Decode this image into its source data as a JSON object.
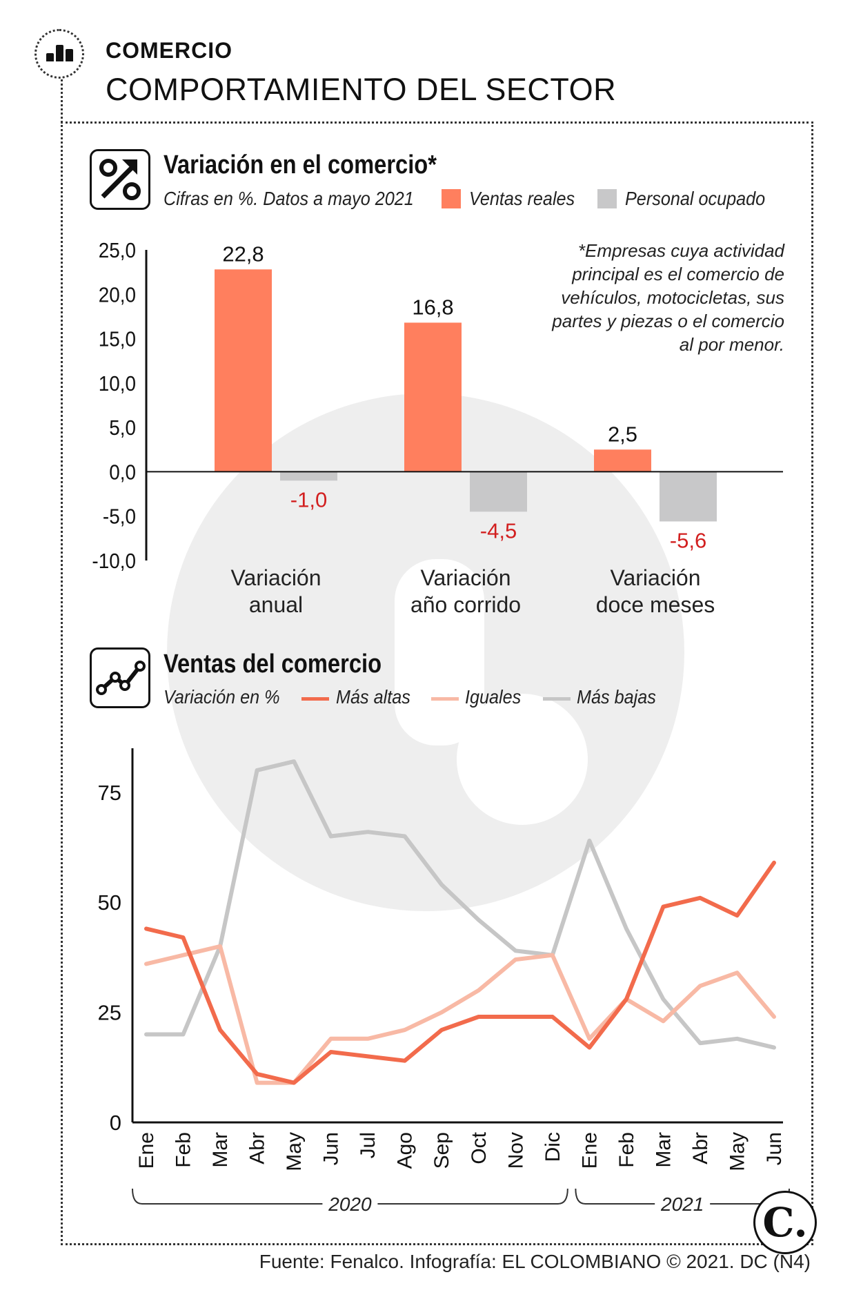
{
  "header": {
    "section": "COMERCIO",
    "title": "COMPORTAMIENTO DEL SECTOR"
  },
  "bar_chart": {
    "title": "Variación en el comercio*",
    "subtitle": "Cifras en %. Datos a mayo 2021",
    "icon": "percent-arrow-icon",
    "note": "*Empresas cuya actividad principal es el comercio de vehículos, motocicletas, sus partes y piezas o el comercio al por menor."
  },
  "line_chart": {
    "title": "Ventas del comercio",
    "subtitle": "Variación en %",
    "icon": "line-chart-icon",
    "year_labels": [
      "2020",
      "2021"
    ]
  },
  "colors": {
    "ventas_reales": "#ff7f5e",
    "personal_ocupado": "#c8c8c9",
    "mas_altas": "#f26b4c",
    "iguales": "#f8b9a5",
    "mas_bajas": "#c6c6c6",
    "negative_label": "#d21f1f"
  },
  "chart_data": [
    {
      "type": "bar",
      "title": "Variación en el comercio*",
      "subtitle": "Cifras en %. Datos a mayo 2021",
      "categories": [
        "Variación anual",
        "Variación año corrido",
        "Variación doce meses"
      ],
      "category_lines": [
        [
          "Variación",
          "anual"
        ],
        [
          "Variación",
          "año corrido"
        ],
        [
          "Variación",
          "doce meses"
        ]
      ],
      "series": [
        {
          "name": "Ventas reales",
          "values": [
            22.8,
            16.8,
            2.5
          ],
          "labels": [
            "22,8",
            "16,8",
            "2,5"
          ]
        },
        {
          "name": "Personal ocupado",
          "values": [
            -1.0,
            -4.5,
            -5.6
          ],
          "labels": [
            "-1,0",
            "-4,5",
            "-5,6"
          ]
        }
      ],
      "ylim": [
        -10,
        25
      ],
      "yticks": [
        "25,0",
        "20,0",
        "15,0",
        "10,0",
        "5,0",
        "0,0",
        "-5,0",
        "-10,0"
      ],
      "ytick_values": [
        25,
        20,
        15,
        10,
        5,
        0,
        -5,
        -10
      ],
      "legend_position": "top"
    },
    {
      "type": "line",
      "title": "Ventas del comercio",
      "subtitle": "Variación en %",
      "x": [
        "Ene",
        "Feb",
        "Mar",
        "Abr",
        "May",
        "Jun",
        "Jul",
        "Ago",
        "Sep",
        "Oct",
        "Nov",
        "Dic",
        "Ene",
        "Feb",
        "Mar",
        "Abr",
        "May",
        "Jun"
      ],
      "series": [
        {
          "name": "Más altas",
          "values": [
            44,
            42,
            21,
            11,
            9,
            16,
            15,
            14,
            21,
            24,
            24,
            24,
            17,
            28,
            49,
            51,
            47,
            59
          ]
        },
        {
          "name": "Iguales",
          "values": [
            36,
            38,
            40,
            9,
            9,
            19,
            19,
            21,
            25,
            30,
            37,
            38,
            19,
            28,
            23,
            31,
            34,
            24
          ]
        },
        {
          "name": "Más bajas",
          "values": [
            20,
            20,
            40,
            80,
            82,
            65,
            66,
            65,
            54,
            46,
            39,
            38,
            64,
            44,
            28,
            18,
            19,
            17
          ]
        }
      ],
      "ylim": [
        0,
        85
      ],
      "yticks": [
        0,
        25,
        50,
        75
      ],
      "groups": [
        {
          "label": "2020",
          "from": 0,
          "to": 11
        },
        {
          "label": "2021",
          "from": 12,
          "to": 17
        }
      ],
      "legend_position": "top"
    }
  ],
  "footer": {
    "source": "Fuente: Fenalco. Infografía: EL COLOMBIANO © 2021. DC (N4)",
    "brand": "C."
  }
}
